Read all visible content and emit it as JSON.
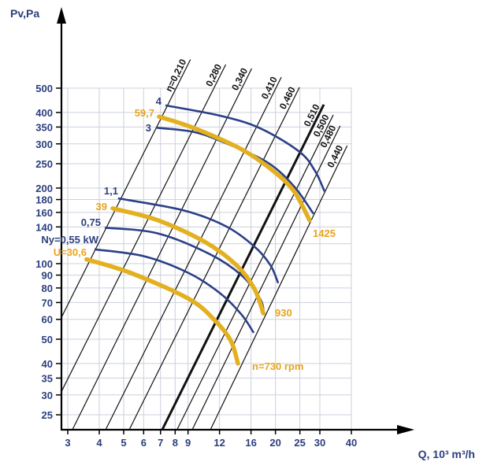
{
  "chart_data": {
    "type": "line",
    "xlabel": "Q, 10³ m³/h",
    "ylabel": "Pv,Pa",
    "x_scale": "log",
    "y_scale": "log",
    "xlim": [
      2.83,
      40
    ],
    "ylim": [
      21.8,
      500
    ],
    "grid": true,
    "x_ticks": [
      3,
      4,
      5,
      6,
      7,
      8,
      9,
      12,
      16,
      20,
      25,
      30,
      40
    ],
    "y_ticks": [
      500,
      400,
      350,
      300,
      250,
      200,
      180,
      160,
      140,
      100,
      90,
      80,
      70,
      60,
      50,
      40,
      35,
      30,
      25
    ],
    "y_grid_unlabeled": [
      120
    ],
    "colors": {
      "power_curve": "#2b3f86",
      "speed_curve": "#e3b020",
      "speed_label": "#e8a41c",
      "axis_text": "#2b3f7e",
      "grid": "#cdd0dc"
    },
    "efficiency_lines": [
      {
        "label": "η=0,210",
        "points": [
          [
            2.83,
            61
          ],
          [
            9.2,
            650
          ]
        ]
      },
      {
        "label": "0,280",
        "points": [
          [
            2.83,
            30.9
          ],
          [
            12.7,
            621
          ]
        ]
      },
      {
        "label": "0,340",
        "points": [
          [
            3.13,
            21.8
          ],
          [
            16.1,
            599
          ]
        ]
      },
      {
        "label": "0,410",
        "points": [
          [
            4.24,
            21.8
          ],
          [
            21.1,
            553
          ]
        ]
      },
      {
        "label": "0,460",
        "points": [
          [
            5.26,
            21.8
          ],
          [
            24.9,
            504
          ]
        ]
      },
      {
        "label": "0,510",
        "points": [
          [
            7.11,
            21.8
          ],
          [
            31.1,
            430
          ]
        ],
        "bold": true
      },
      {
        "label": "0,500",
        "points": [
          [
            8.14,
            21.8
          ],
          [
            33.9,
            391
          ]
        ]
      },
      {
        "label": "0,480",
        "points": [
          [
            9.35,
            21.8
          ],
          [
            36.1,
            354
          ]
        ]
      },
      {
        "label": "0,440",
        "points": [
          [
            11.04,
            21.8
          ],
          [
            38.5,
            295
          ]
        ]
      }
    ],
    "series": [
      {
        "name": "4",
        "kind": "power",
        "points": [
          [
            7.32,
            427
          ],
          [
            12.1,
            388
          ],
          [
            17.4,
            346
          ],
          [
            24.9,
            279
          ],
          [
            28.7,
            234
          ],
          [
            31.3,
            194
          ]
        ]
      },
      {
        "name": "59,7",
        "kind": "speed",
        "points": [
          [
            6.91,
            385
          ],
          [
            9.55,
            346
          ],
          [
            14.7,
            285
          ],
          [
            19.6,
            234
          ],
          [
            23.7,
            194
          ],
          [
            27.3,
            149
          ]
        ]
      },
      {
        "name": "3",
        "kind": "power",
        "points": [
          [
            6.71,
            348
          ],
          [
            9.55,
            334
          ],
          [
            13.0,
            299
          ],
          [
            18.7,
            252
          ],
          [
            23.7,
            203
          ],
          [
            28.3,
            158
          ]
        ]
      },
      {
        "name": "1,1",
        "kind": "power",
        "points": [
          [
            4.75,
            182
          ],
          [
            8.63,
            163
          ],
          [
            12.7,
            141
          ],
          [
            16.5,
            117
          ],
          [
            19.1,
            98.6
          ],
          [
            20.5,
            83.6
          ]
        ]
      },
      {
        "name": "39",
        "kind": "speed",
        "points": [
          [
            4.52,
            166
          ],
          [
            6.81,
            149
          ],
          [
            10.5,
            122
          ],
          [
            14.0,
            98.6
          ],
          [
            16.5,
            79.4
          ],
          [
            17.9,
            63.4
          ]
        ]
      },
      {
        "name": "0,75",
        "kind": "power",
        "points": [
          [
            4.21,
            139
          ],
          [
            6.81,
            132
          ],
          [
            11.0,
            109
          ],
          [
            14.7,
            89.7
          ],
          [
            17.4,
            72.3
          ],
          [
            18.0,
            63.4
          ]
        ]
      },
      {
        "name": "Ny=0,55 kW",
        "kind": "power",
        "points": [
          [
            3.83,
            114
          ],
          [
            6.03,
            107
          ],
          [
            9.08,
            91.6
          ],
          [
            12.1,
            76.0
          ],
          [
            14.7,
            62.5
          ],
          [
            16.4,
            53.0
          ]
        ]
      },
      {
        "name": "U=30,6",
        "kind": "speed",
        "points": [
          [
            3.56,
            104
          ],
          [
            5.37,
            91.6
          ],
          [
            9.08,
            72.3
          ],
          [
            11.5,
            59.4
          ],
          [
            13.3,
            49.3
          ],
          [
            14.2,
            40.0
          ]
        ]
      }
    ],
    "speed_labels": [
      "1425",
      "930",
      "n=730 rpm"
    ]
  }
}
